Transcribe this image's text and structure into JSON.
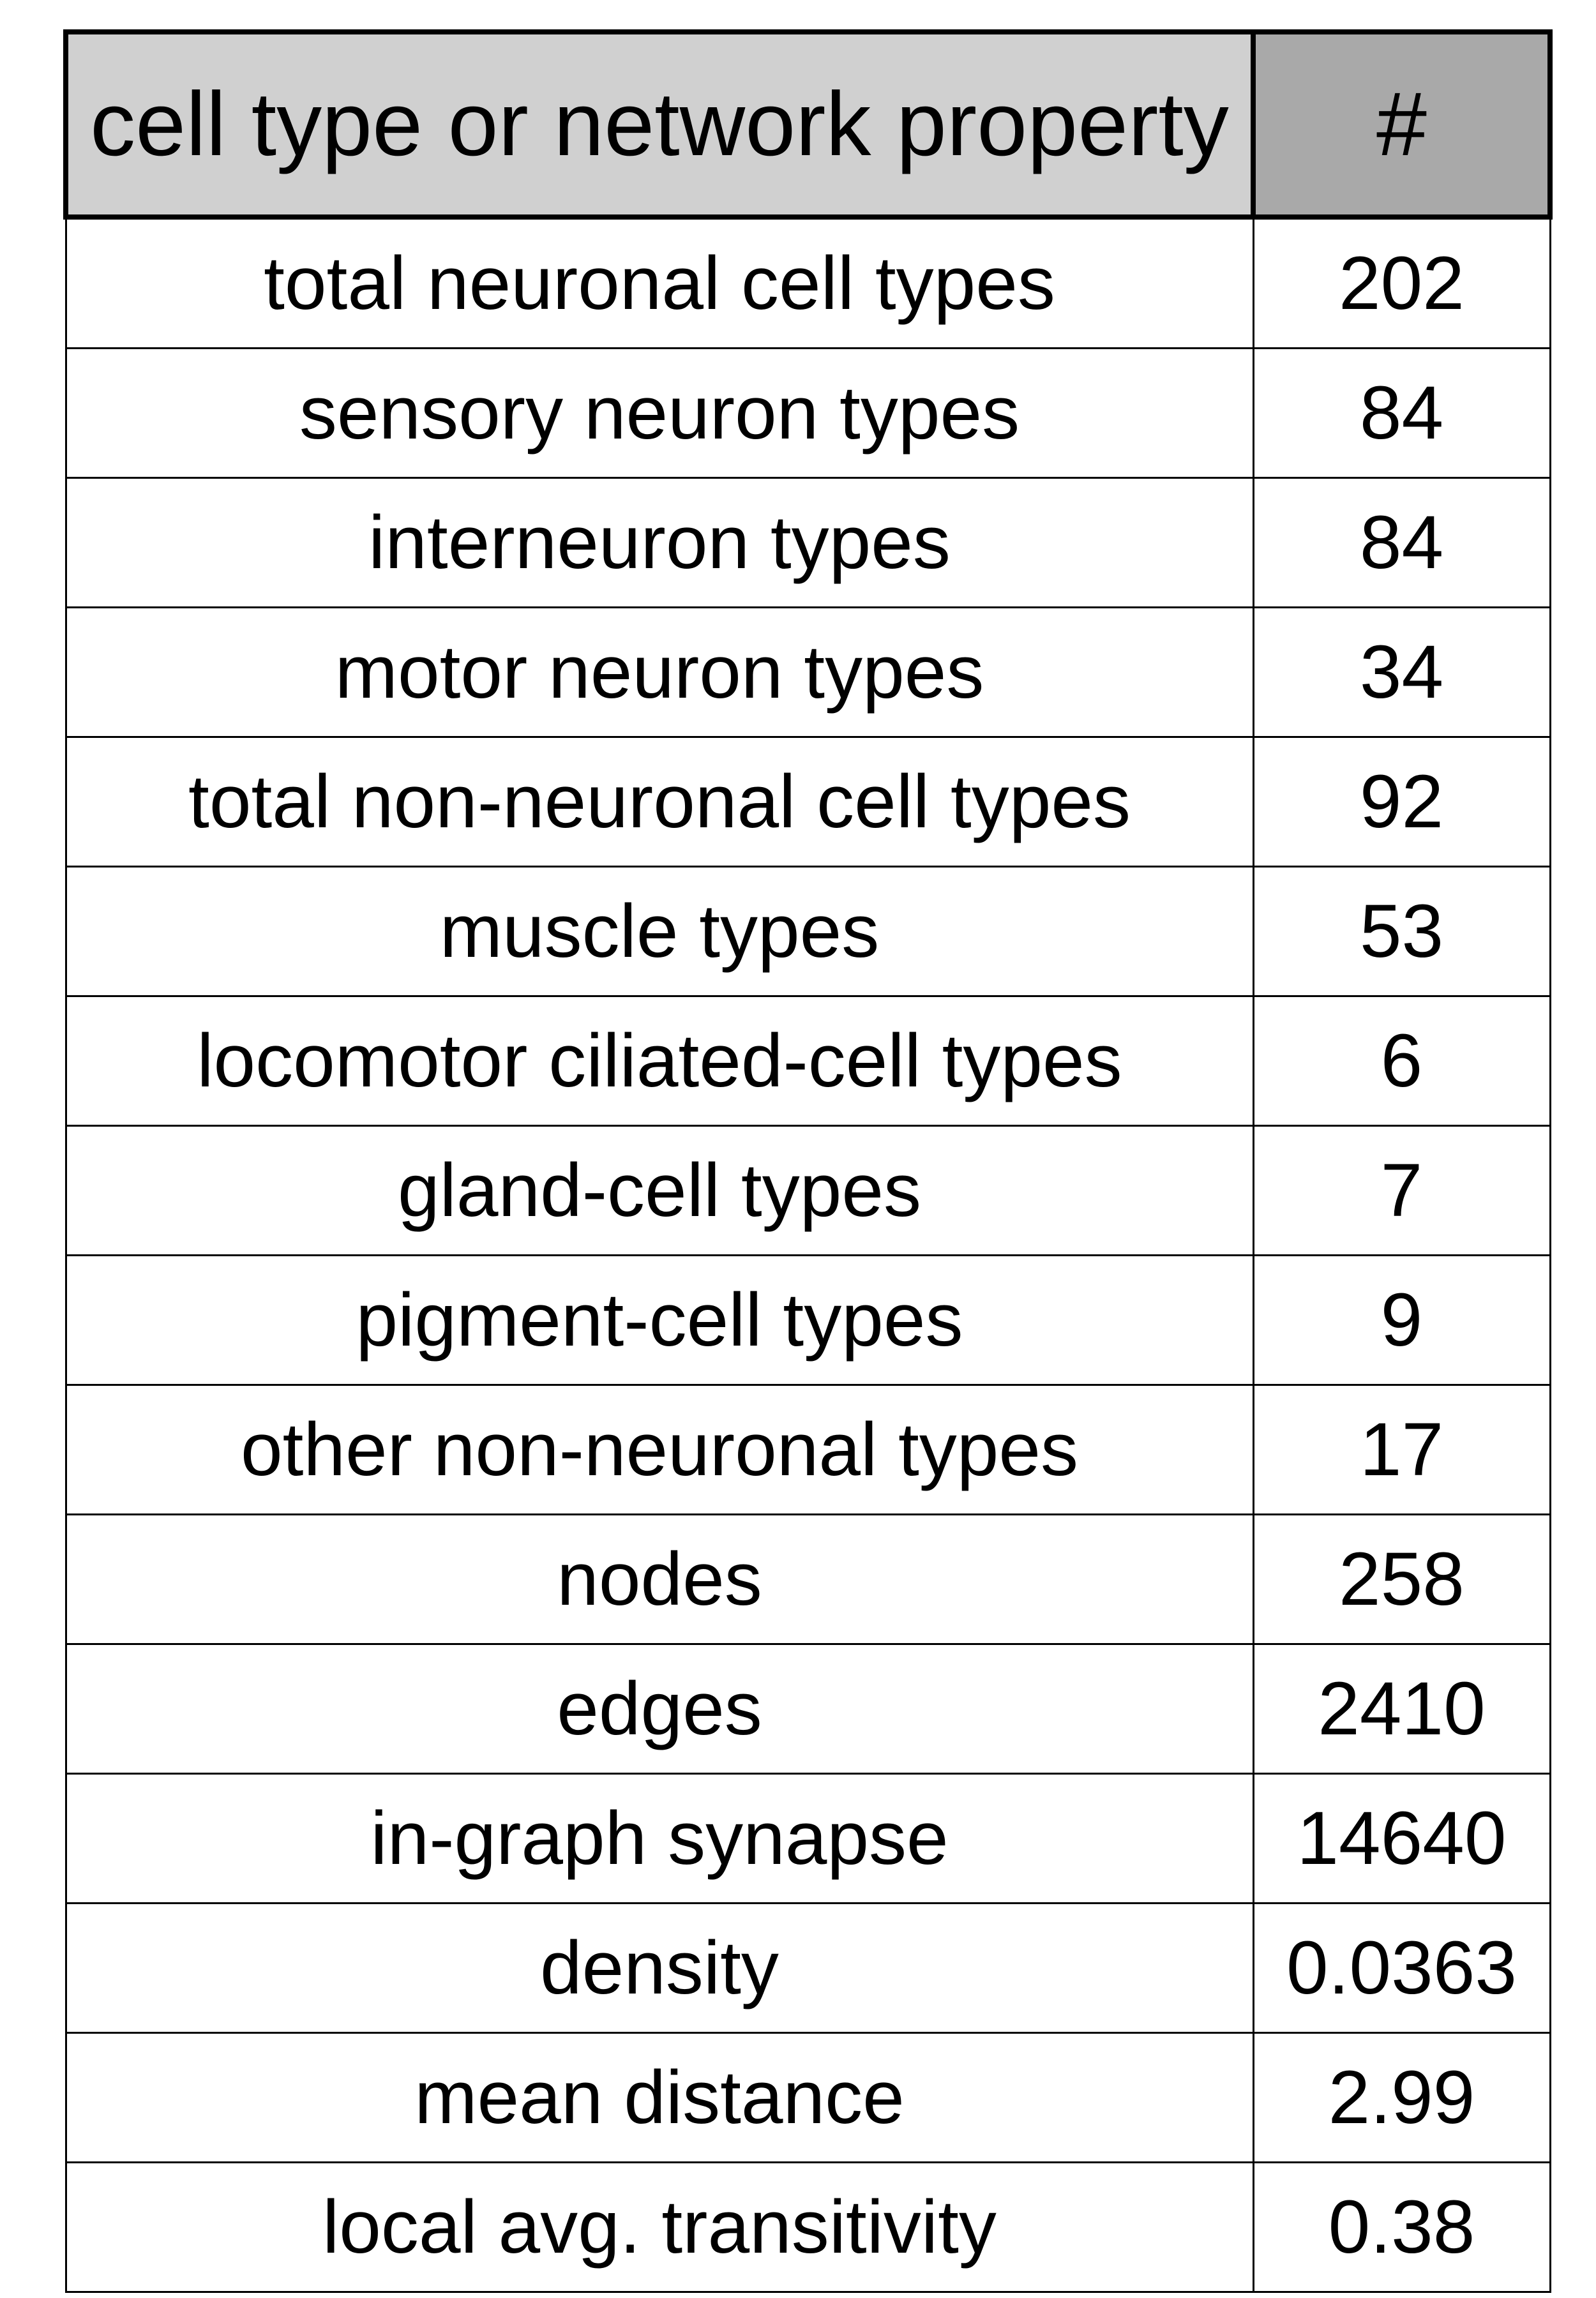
{
  "table": {
    "headers": [
      "cell type or network property",
      "#"
    ],
    "header_colors": [
      "#d0d0d0",
      "#a9a9a9"
    ],
    "rows": [
      {
        "label": "total neuronal cell types",
        "value": "202"
      },
      {
        "label": "sensory neuron types",
        "value": "84"
      },
      {
        "label": "interneuron types",
        "value": "84"
      },
      {
        "label": "motor neuron types",
        "value": "34"
      },
      {
        "label": "total non-neuronal cell types",
        "value": "92"
      },
      {
        "label": "muscle types",
        "value": "53"
      },
      {
        "label": "locomotor ciliated-cell types",
        "value": "6"
      },
      {
        "label": "gland-cell types",
        "value": "7"
      },
      {
        "label": "pigment-cell types",
        "value": "9"
      },
      {
        "label": "other non-neuronal types",
        "value": "17"
      },
      {
        "label": "nodes",
        "value": "258"
      },
      {
        "label": "edges",
        "value": "2410"
      },
      {
        "label": "in-graph synapse",
        "value": "14640"
      },
      {
        "label": "density",
        "value": "0.0363"
      },
      {
        "label": "mean distance",
        "value": "2.99"
      },
      {
        "label": "local avg. transitivity",
        "value": "0.38"
      }
    ]
  }
}
